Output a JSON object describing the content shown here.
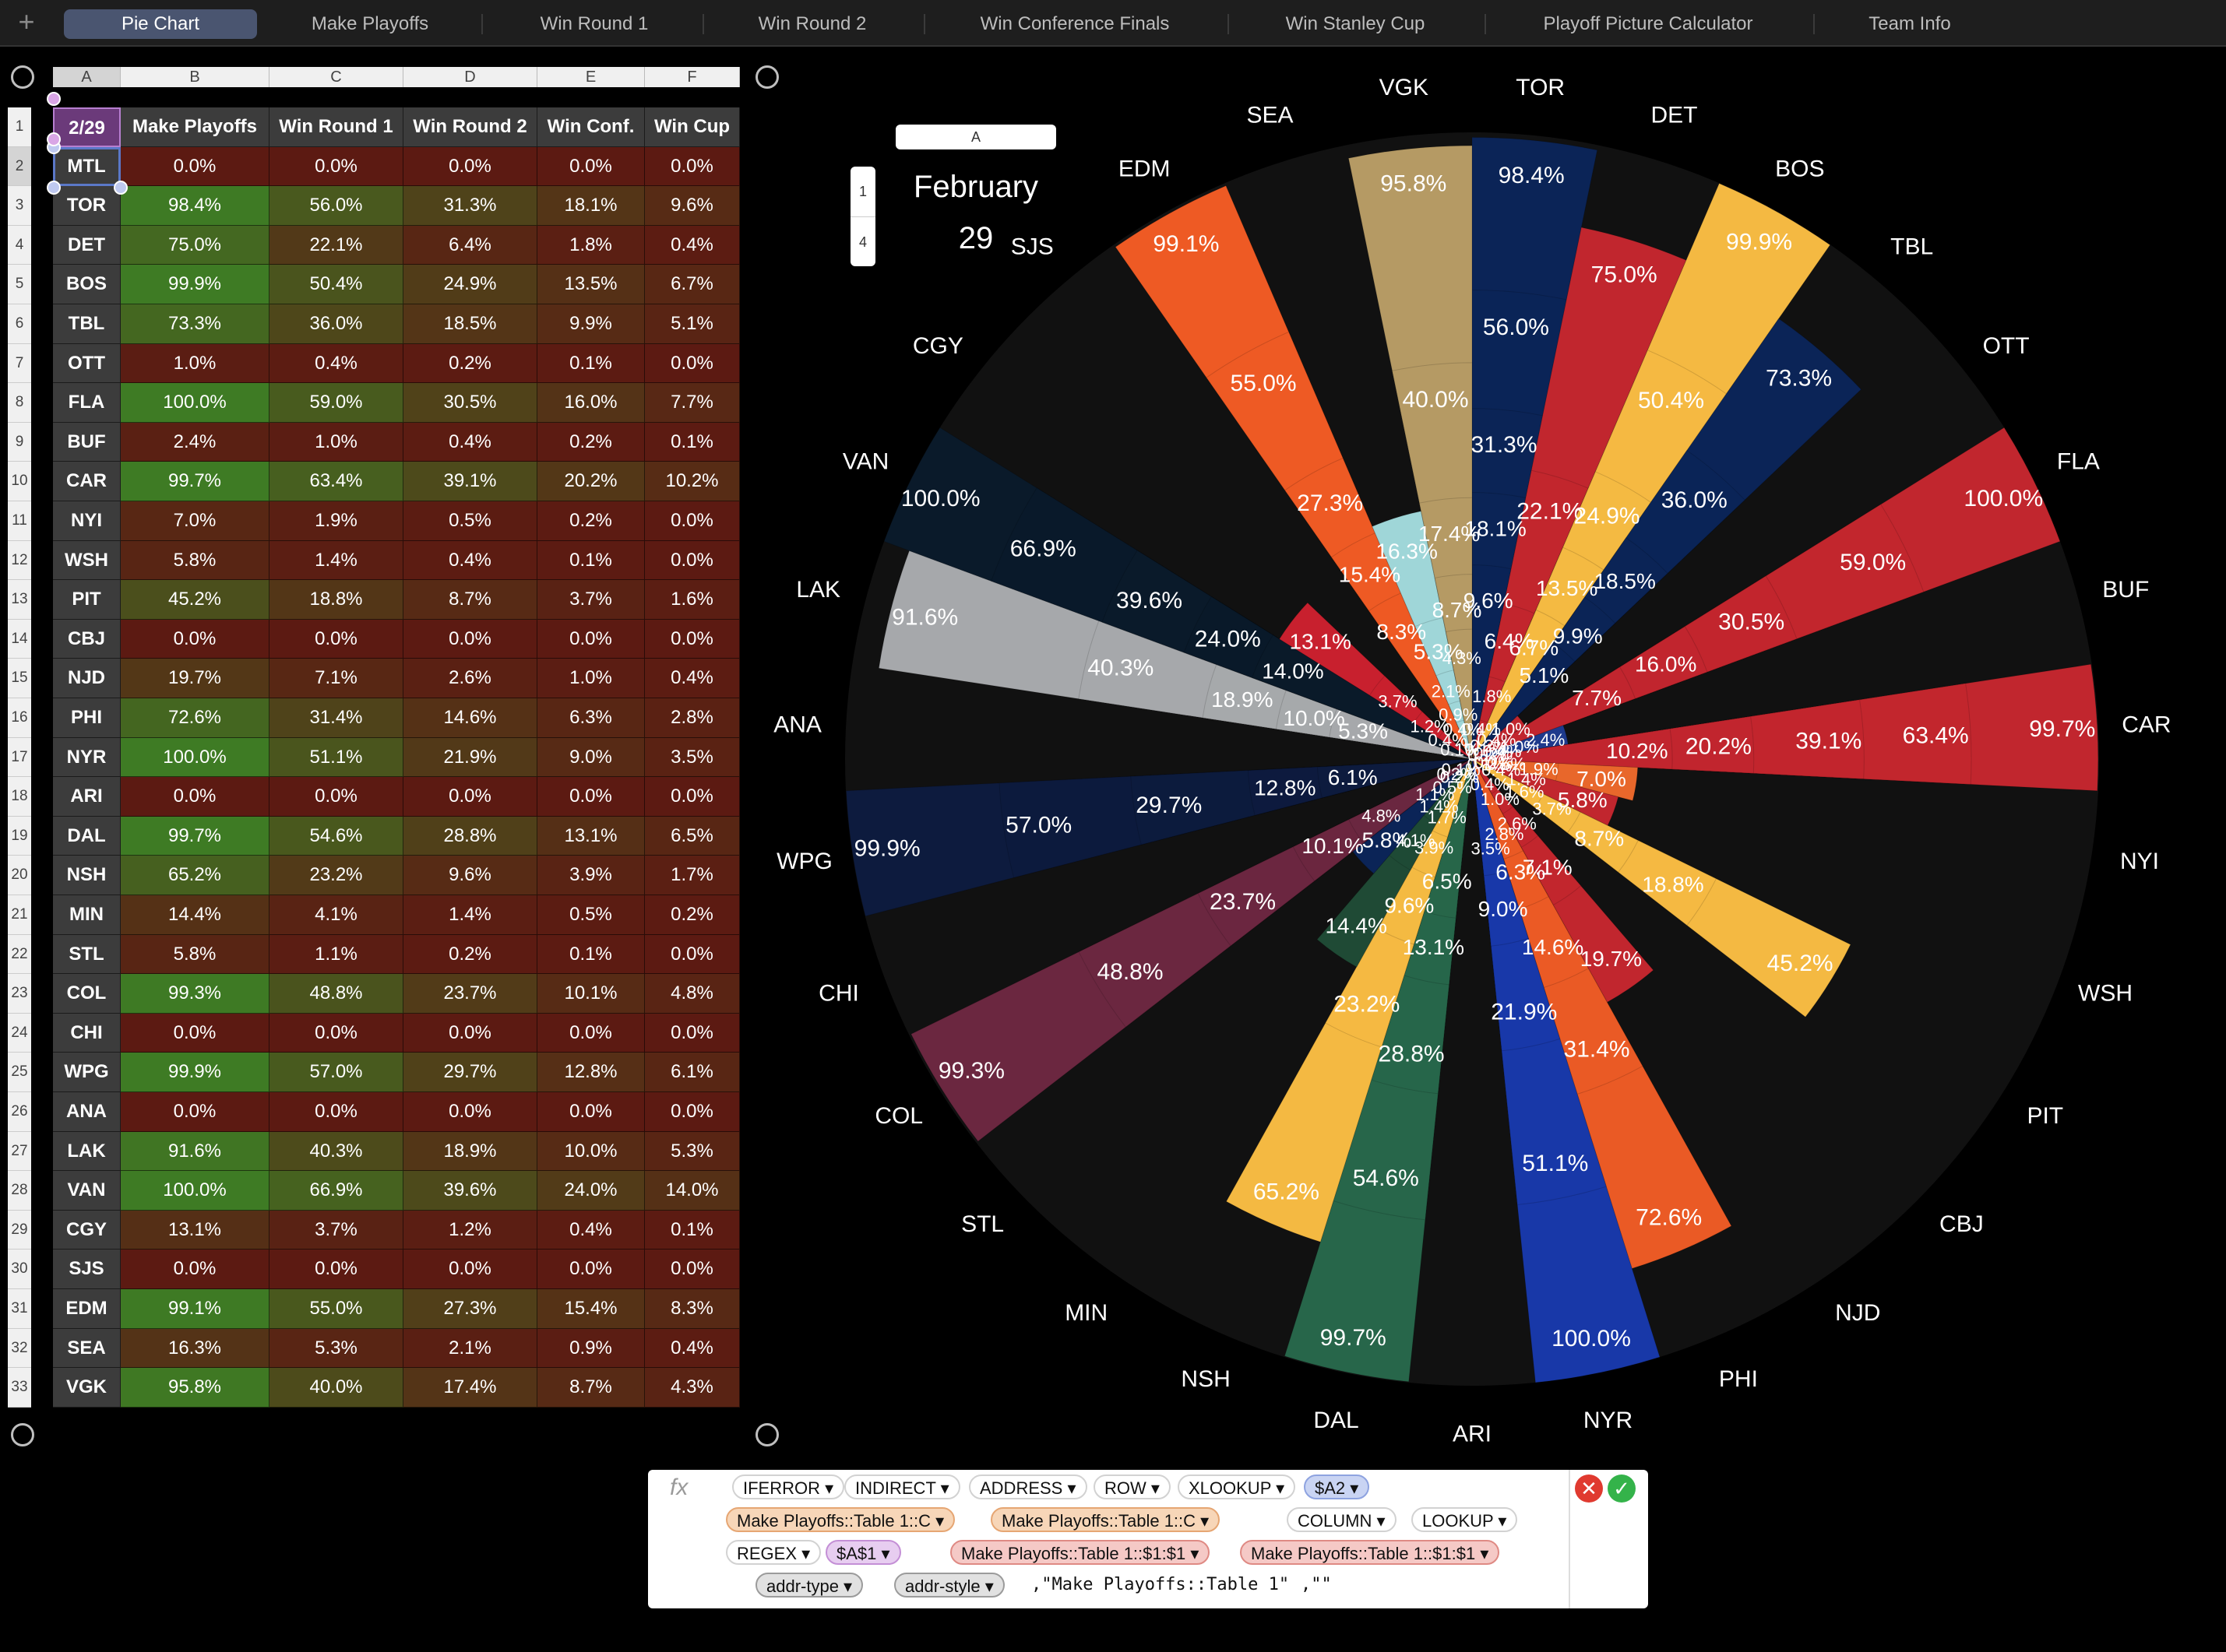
{
  "tabs": [
    "Pie Chart",
    "Make Playoffs",
    "Win Round 1",
    "Win Round 2",
    "Win Conference Finals",
    "Win Stanley Cup",
    "Playoff Picture Calculator",
    "Team Info"
  ],
  "active_tab": 0,
  "sheet": {
    "col_letters": [
      "A",
      "B",
      "C",
      "D",
      "E",
      "F"
    ],
    "headers": [
      "2/29",
      "Make Playoffs",
      "Win Round 1",
      "Win Round 2",
      "Win Conf.",
      "Win Cup"
    ],
    "rows": [
      [
        "MTL",
        "0.0%",
        "0.0%",
        "0.0%",
        "0.0%",
        "0.0%"
      ],
      [
        "TOR",
        "98.4%",
        "56.0%",
        "31.3%",
        "18.1%",
        "9.6%"
      ],
      [
        "DET",
        "75.0%",
        "22.1%",
        "6.4%",
        "1.8%",
        "0.4%"
      ],
      [
        "BOS",
        "99.9%",
        "50.4%",
        "24.9%",
        "13.5%",
        "6.7%"
      ],
      [
        "TBL",
        "73.3%",
        "36.0%",
        "18.5%",
        "9.9%",
        "5.1%"
      ],
      [
        "OTT",
        "1.0%",
        "0.4%",
        "0.2%",
        "0.1%",
        "0.0%"
      ],
      [
        "FLA",
        "100.0%",
        "59.0%",
        "30.5%",
        "16.0%",
        "7.7%"
      ],
      [
        "BUF",
        "2.4%",
        "1.0%",
        "0.4%",
        "0.2%",
        "0.1%"
      ],
      [
        "CAR",
        "99.7%",
        "63.4%",
        "39.1%",
        "20.2%",
        "10.2%"
      ],
      [
        "NYI",
        "7.0%",
        "1.9%",
        "0.5%",
        "0.2%",
        "0.0%"
      ],
      [
        "WSH",
        "5.8%",
        "1.4%",
        "0.4%",
        "0.1%",
        "0.0%"
      ],
      [
        "PIT",
        "45.2%",
        "18.8%",
        "8.7%",
        "3.7%",
        "1.6%"
      ],
      [
        "CBJ",
        "0.0%",
        "0.0%",
        "0.0%",
        "0.0%",
        "0.0%"
      ],
      [
        "NJD",
        "19.7%",
        "7.1%",
        "2.6%",
        "1.0%",
        "0.4%"
      ],
      [
        "PHI",
        "72.6%",
        "31.4%",
        "14.6%",
        "6.3%",
        "2.8%"
      ],
      [
        "NYR",
        "100.0%",
        "51.1%",
        "21.9%",
        "9.0%",
        "3.5%"
      ],
      [
        "ARI",
        "0.0%",
        "0.0%",
        "0.0%",
        "0.0%",
        "0.0%"
      ],
      [
        "DAL",
        "99.7%",
        "54.6%",
        "28.8%",
        "13.1%",
        "6.5%"
      ],
      [
        "NSH",
        "65.2%",
        "23.2%",
        "9.6%",
        "3.9%",
        "1.7%"
      ],
      [
        "MIN",
        "14.4%",
        "4.1%",
        "1.4%",
        "0.5%",
        "0.2%"
      ],
      [
        "STL",
        "5.8%",
        "1.1%",
        "0.2%",
        "0.1%",
        "0.0%"
      ],
      [
        "COL",
        "99.3%",
        "48.8%",
        "23.7%",
        "10.1%",
        "4.8%"
      ],
      [
        "CHI",
        "0.0%",
        "0.0%",
        "0.0%",
        "0.0%",
        "0.0%"
      ],
      [
        "WPG",
        "99.9%",
        "57.0%",
        "29.7%",
        "12.8%",
        "6.1%"
      ],
      [
        "ANA",
        "0.0%",
        "0.0%",
        "0.0%",
        "0.0%",
        "0.0%"
      ],
      [
        "LAK",
        "91.6%",
        "40.3%",
        "18.9%",
        "10.0%",
        "5.3%"
      ],
      [
        "VAN",
        "100.0%",
        "66.9%",
        "39.6%",
        "24.0%",
        "14.0%"
      ],
      [
        "CGY",
        "13.1%",
        "3.7%",
        "1.2%",
        "0.4%",
        "0.1%"
      ],
      [
        "SJS",
        "0.0%",
        "0.0%",
        "0.0%",
        "0.0%",
        "0.0%"
      ],
      [
        "EDM",
        "99.1%",
        "55.0%",
        "27.3%",
        "15.4%",
        "8.3%"
      ],
      [
        "SEA",
        "16.3%",
        "5.3%",
        "2.1%",
        "0.9%",
        "0.4%"
      ],
      [
        "VGK",
        "95.8%",
        "40.0%",
        "17.4%",
        "8.7%",
        "4.3%"
      ]
    ]
  },
  "chart_widget": {
    "col_letter": "A",
    "rows": [
      "1",
      "4"
    ],
    "date_line1": "February",
    "date_line2": "29"
  },
  "chart_data": {
    "type": "pie",
    "description_kind": "polar-area",
    "rings": [
      "Make Playoffs",
      "Win Round 1",
      "Win Round 2",
      "Win Conf.",
      "Win Cup"
    ],
    "teams": [
      {
        "name": "TOR",
        "color": "#0b2457",
        "values": [
          98.4,
          56.0,
          31.3,
          18.1,
          9.6
        ]
      },
      {
        "name": "DET",
        "color": "#c1262e",
        "values": [
          75.0,
          22.1,
          6.4,
          1.8,
          0.4
        ]
      },
      {
        "name": "BOS",
        "color": "#f4b942",
        "values": [
          99.9,
          50.4,
          24.9,
          13.5,
          6.7
        ]
      },
      {
        "name": "TBL",
        "color": "#0b2457",
        "values": [
          73.3,
          36.0,
          18.5,
          9.9,
          5.1
        ]
      },
      {
        "name": "OTT",
        "color": "#c1262e",
        "values": [
          1.0,
          0.4,
          0.2,
          0.1,
          0.0
        ]
      },
      {
        "name": "FLA",
        "color": "#c1262e",
        "values": [
          100.0,
          59.0,
          30.5,
          16.0,
          7.7
        ]
      },
      {
        "name": "BUF",
        "color": "#1e3a8c",
        "values": [
          2.4,
          1.0,
          0.4,
          0.2,
          0.1
        ]
      },
      {
        "name": "CAR",
        "color": "#c1262e",
        "values": [
          99.7,
          63.4,
          39.1,
          20.2,
          10.2
        ]
      },
      {
        "name": "NYI",
        "color": "#e8672b",
        "values": [
          7.0,
          1.9,
          0.5,
          0.2,
          0.0
        ]
      },
      {
        "name": "WSH",
        "color": "#c1262e",
        "values": [
          5.8,
          1.4,
          0.4,
          0.1,
          0.0
        ]
      },
      {
        "name": "PIT",
        "color": "#f4b942",
        "values": [
          45.2,
          18.8,
          8.7,
          3.7,
          1.6
        ]
      },
      {
        "name": "CBJ",
        "color": "#0b2457",
        "values": [
          0.0,
          0.0,
          0.0,
          0.0,
          0.0
        ]
      },
      {
        "name": "NJD",
        "color": "#c1262e",
        "values": [
          19.7,
          7.1,
          2.6,
          1.0,
          0.4
        ]
      },
      {
        "name": "PHI",
        "color": "#ea5a25",
        "values": [
          72.6,
          31.4,
          14.6,
          6.3,
          2.8
        ]
      },
      {
        "name": "NYR",
        "color": "#1838a8",
        "values": [
          100.0,
          51.1,
          21.9,
          9.0,
          3.5
        ]
      },
      {
        "name": "ARI",
        "color": "#7a2435",
        "values": [
          0.0,
          0.0,
          0.0,
          0.0,
          0.0
        ]
      },
      {
        "name": "DAL",
        "color": "#27664a",
        "values": [
          99.7,
          54.6,
          28.8,
          13.1,
          6.5
        ]
      },
      {
        "name": "NSH",
        "color": "#f4b942",
        "values": [
          65.2,
          23.2,
          9.6,
          3.9,
          1.7
        ]
      },
      {
        "name": "MIN",
        "color": "#1f4a35",
        "values": [
          14.4,
          4.1,
          1.4,
          0.5,
          0.2
        ]
      },
      {
        "name": "STL",
        "color": "#0b2457",
        "values": [
          5.8,
          1.1,
          0.2,
          0.1,
          0.0
        ]
      },
      {
        "name": "COL",
        "color": "#6b2740",
        "values": [
          99.3,
          48.8,
          23.7,
          10.1,
          4.8
        ]
      },
      {
        "name": "CHI",
        "color": "#c1262e",
        "values": [
          0.0,
          0.0,
          0.0,
          0.0,
          0.0
        ]
      },
      {
        "name": "WPG",
        "color": "#0d1b3e",
        "values": [
          99.9,
          57.0,
          29.7,
          12.8,
          6.1
        ]
      },
      {
        "name": "ANA",
        "color": "#e8672b",
        "values": [
          0.0,
          0.0,
          0.0,
          0.0,
          0.0
        ]
      },
      {
        "name": "LAK",
        "color": "#a6a8ab",
        "values": [
          91.6,
          40.3,
          18.9,
          10.0,
          5.3
        ]
      },
      {
        "name": "VAN",
        "color": "#0a1a2a",
        "values": [
          100.0,
          66.9,
          39.6,
          24.0,
          14.0
        ]
      },
      {
        "name": "CGY",
        "color": "#c8202e",
        "values": [
          13.1,
          3.7,
          1.2,
          0.4,
          0.1
        ]
      },
      {
        "name": "SJS",
        "color": "#0a6f7c",
        "values": [
          0.0,
          0.0,
          0.0,
          0.0,
          0.0
        ]
      },
      {
        "name": "EDM",
        "color": "#ee5a24",
        "values": [
          99.1,
          55.0,
          27.3,
          15.4,
          8.3
        ]
      },
      {
        "name": "SEA",
        "color": "#9fd6d8",
        "values": [
          16.3,
          5.3,
          2.1,
          0.9,
          0.4
        ]
      },
      {
        "name": "VGK",
        "color": "#b59a64",
        "values": [
          95.8,
          40.0,
          17.4,
          8.7,
          4.3
        ]
      }
    ]
  },
  "formula": {
    "fx": "fx",
    "row1": [
      "IFERROR ▾",
      "INDIRECT ▾",
      "ADDRESS ▾",
      "ROW ▾",
      "XLOOKUP ▾",
      "$A2 ▾"
    ],
    "row2": [
      "Make Playoffs::Table 1::C ▾",
      "Make Playoffs::Table 1::C ▾",
      "COLUMN ▾",
      "LOOKUP ▾"
    ],
    "row3": [
      "REGEX ▾",
      "$A$1 ▾",
      "Make Playoffs::Table 1::$1:$1 ▾",
      "Make Playoffs::Table 1::$1:$1 ▾"
    ],
    "row4": [
      "addr-type ▾",
      "addr-style ▾"
    ],
    "row4_text": ",\"Make Playoffs::Table 1\"",
    "row4_tail": ",\"\"",
    "cancel": "✕",
    "accept": "✓"
  },
  "colors": {
    "green_hi": "#3e7b24",
    "red_lo": "#5a1a12",
    "accent": "#4a5570"
  }
}
